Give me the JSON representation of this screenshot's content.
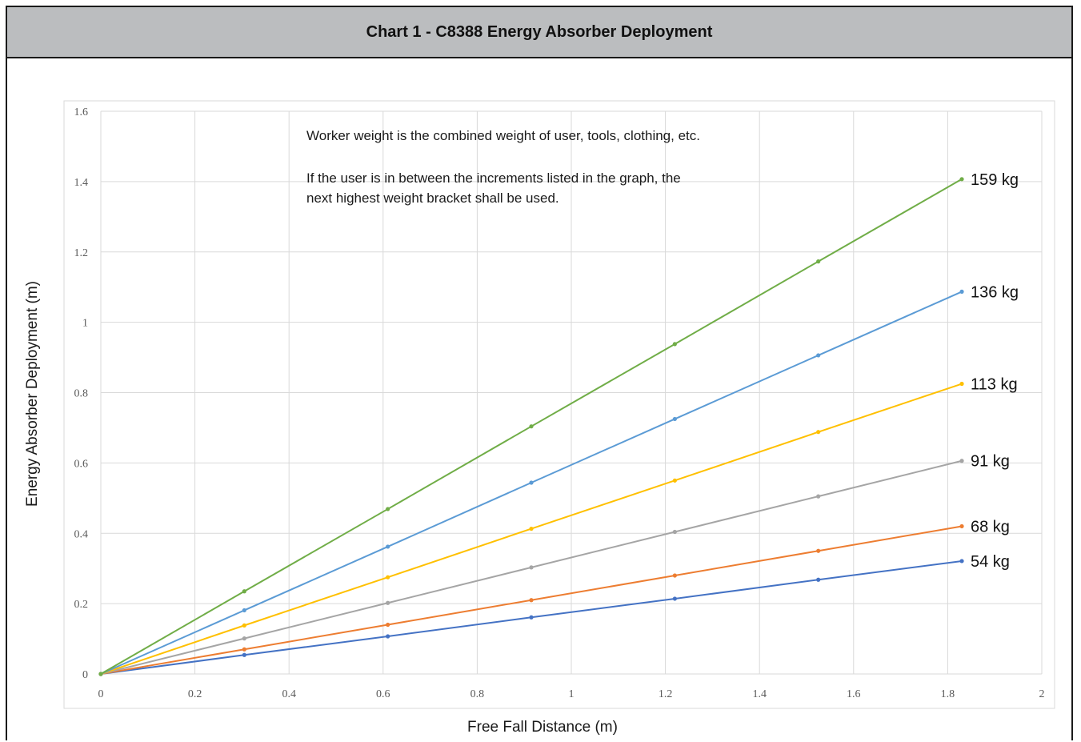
{
  "header": {
    "title": "Chart 1 - C8388 Energy Absorber Deployment"
  },
  "notes": [
    "Worker weight is the combined weight of user, tools, clothing, etc.",
    "If the user is in between the increments listed in the graph, the",
    "next highest weight bracket shall be used."
  ],
  "chart_data": {
    "type": "line",
    "title": "Chart 1 - C8388 Energy Absorber Deployment",
    "xlabel": "Free Fall Distance (m)",
    "ylabel": "Energy Absorber Deployment (m)",
    "xlim": [
      0,
      2
    ],
    "ylim": [
      0,
      1.6
    ],
    "x_ticks": [
      "0",
      "0.2",
      "0.4",
      "0.6",
      "0.8",
      "1",
      "1.2",
      "1.4",
      "1.6",
      "1.8",
      "2"
    ],
    "y_ticks": [
      "0",
      "0.2",
      "0.4",
      "0.6",
      "0.8",
      "1",
      "1.2",
      "1.4",
      "1.6"
    ],
    "grid": true,
    "legend": "series labels at right end of lines",
    "x": [
      0,
      0.305,
      0.61,
      0.915,
      1.22,
      1.525,
      1.83
    ],
    "series": [
      {
        "name": "54 kg",
        "color": "#4472c4",
        "values": [
          0,
          0.054,
          0.107,
          0.161,
          0.214,
          0.268,
          0.321
        ]
      },
      {
        "name": "68 kg",
        "color": "#ed7d31",
        "values": [
          0,
          0.07,
          0.14,
          0.21,
          0.28,
          0.35,
          0.42
        ]
      },
      {
        "name": "91 kg",
        "color": "#a5a5a5",
        "values": [
          0,
          0.101,
          0.202,
          0.303,
          0.404,
          0.505,
          0.606
        ]
      },
      {
        "name": "113 kg",
        "color": "#ffc000",
        "values": [
          0,
          0.138,
          0.275,
          0.413,
          0.55,
          0.688,
          0.825
        ]
      },
      {
        "name": "136 kg",
        "color": "#5b9bd5",
        "values": [
          0,
          0.181,
          0.362,
          0.544,
          0.725,
          0.906,
          1.087
        ]
      },
      {
        "name": "159 kg",
        "color": "#70ad47",
        "values": [
          0,
          0.235,
          0.469,
          0.704,
          0.938,
          1.173,
          1.407
        ]
      }
    ]
  }
}
